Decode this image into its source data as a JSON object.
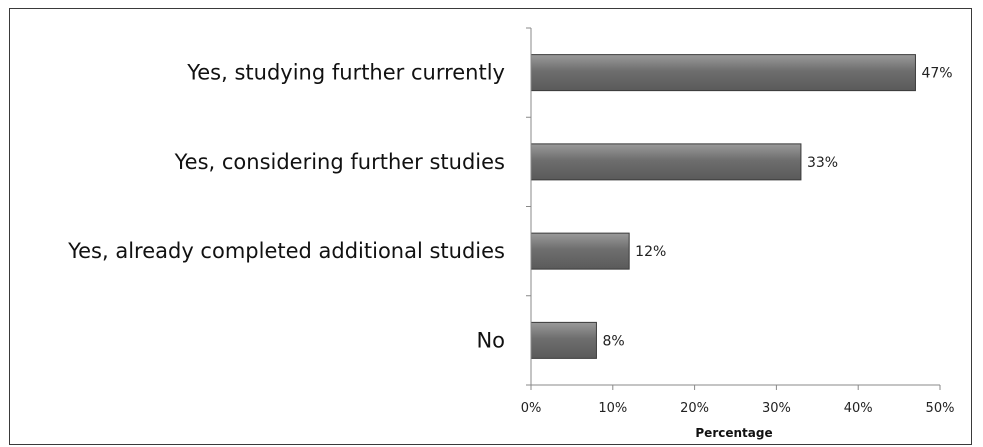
{
  "chart_data": {
    "type": "bar",
    "orientation": "horizontal",
    "categories": [
      "Yes, studying further currently",
      "Yes, considering further studies",
      "Yes, already completed additional studies",
      "No"
    ],
    "values": [
      47,
      33,
      12,
      8
    ],
    "value_labels": [
      "47%",
      "33%",
      "12%",
      "8%"
    ],
    "xlabel": "Percentage",
    "ylabel": "",
    "xlim": [
      0,
      50
    ],
    "x_ticks": [
      0,
      10,
      20,
      30,
      40,
      50
    ],
    "x_tick_labels": [
      "0%",
      "10%",
      "20%",
      "30%",
      "40%",
      "50%"
    ],
    "grid": false,
    "colors": {
      "bar_fill": "#737373",
      "bar_edge": "#3a3a3a",
      "axis": "#888888"
    }
  }
}
